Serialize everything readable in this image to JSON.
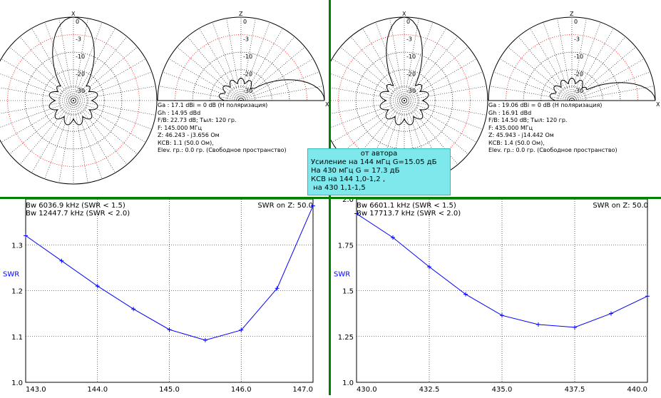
{
  "polar": {
    "levels": [
      "0",
      "-3",
      "-10",
      "-20",
      "-30"
    ],
    "axis_x": "X",
    "axis_z": "Z"
  },
  "left_info": [
    "Ga : 17.1 dBi = 0 dB  (H поляризация)",
    "Gh : 14.95 dBd",
    "F/B: 22.73 dB; Тыл: 120 гр.",
    "F: 145.000 МГц",
    "Z: 46.243 - j3.656 Ом",
    "КСВ: 1.1 (50.0 Ом),",
    "Elev. гр.: 0.0 гр. (Свободное пространство)"
  ],
  "right_info": [
    "Ga : 19.06 dBi = 0 dB  (H поляризация)",
    "Gh : 16.91 dBd",
    "F/B: 14.50 dB; Тыл: 120 гр.",
    "F: 435.000 МГц",
    "Z: 45.943 - j14.442 Ом",
    "КСВ: 1.4 (50.0 Ом),",
    "Elev. гр.: 0.0 гр. (Свободное пространство)"
  ],
  "note": {
    "title": "от автора",
    "lines": [
      "Усиление на 144 мГц G=15.05 дБ",
      "На 430 мГц G = 17.3 дБ",
      "КСВ на 144 1,0-1,2 ,",
      " на 430 1,1-1,5"
    ]
  },
  "colors": {
    "divider": "#008000",
    "curve": "#0000ff",
    "ring3db": "#ff0000",
    "note_bg": "#7fe8ec"
  },
  "chart_data": [
    {
      "type": "line",
      "ylabel": "SWR",
      "z_label": "SWR on Z: 50.0",
      "bw_lines": [
        "Bw 6036.9 kHz (SWR < 1.5)",
        "Bw 12447.7 kHz (SWR < 2.0)"
      ],
      "xlim": [
        143.0,
        147.0
      ],
      "ylim": [
        1.0,
        1.4
      ],
      "xticks": [
        "143.0",
        "144.0",
        "145.0",
        "146.0",
        "147.0"
      ],
      "yticks": [
        "1.0",
        "1.1",
        "1.2",
        "1.3"
      ],
      "x": [
        143.0,
        143.5,
        144.0,
        144.5,
        145.0,
        145.5,
        146.0,
        146.5,
        147.0
      ],
      "y": [
        1.32,
        1.265,
        1.21,
        1.16,
        1.115,
        1.092,
        1.114,
        1.205,
        1.385
      ]
    },
    {
      "type": "line",
      "ylabel": "SWR",
      "z_label": "SWR on Z: 50.0",
      "bw_lines": [
        "Bw 6601.1 kHz (SWR < 1.5)",
        "Bw 17713.7 kHz (SWR < 2.0)"
      ],
      "xlim": [
        430.0,
        440.0
      ],
      "ylim": [
        1.0,
        2.0
      ],
      "xticks": [
        "430.0",
        "432.5",
        "435.0",
        "437.5",
        "440.0"
      ],
      "yticks": [
        "1.0",
        "1.25",
        "1.5",
        "1.75",
        "2.0"
      ],
      "x": [
        430.0,
        431.25,
        432.5,
        433.75,
        435.0,
        436.25,
        437.5,
        438.75,
        440.0
      ],
      "y": [
        1.92,
        1.79,
        1.63,
        1.48,
        1.365,
        1.315,
        1.3,
        1.375,
        1.47
      ]
    }
  ]
}
